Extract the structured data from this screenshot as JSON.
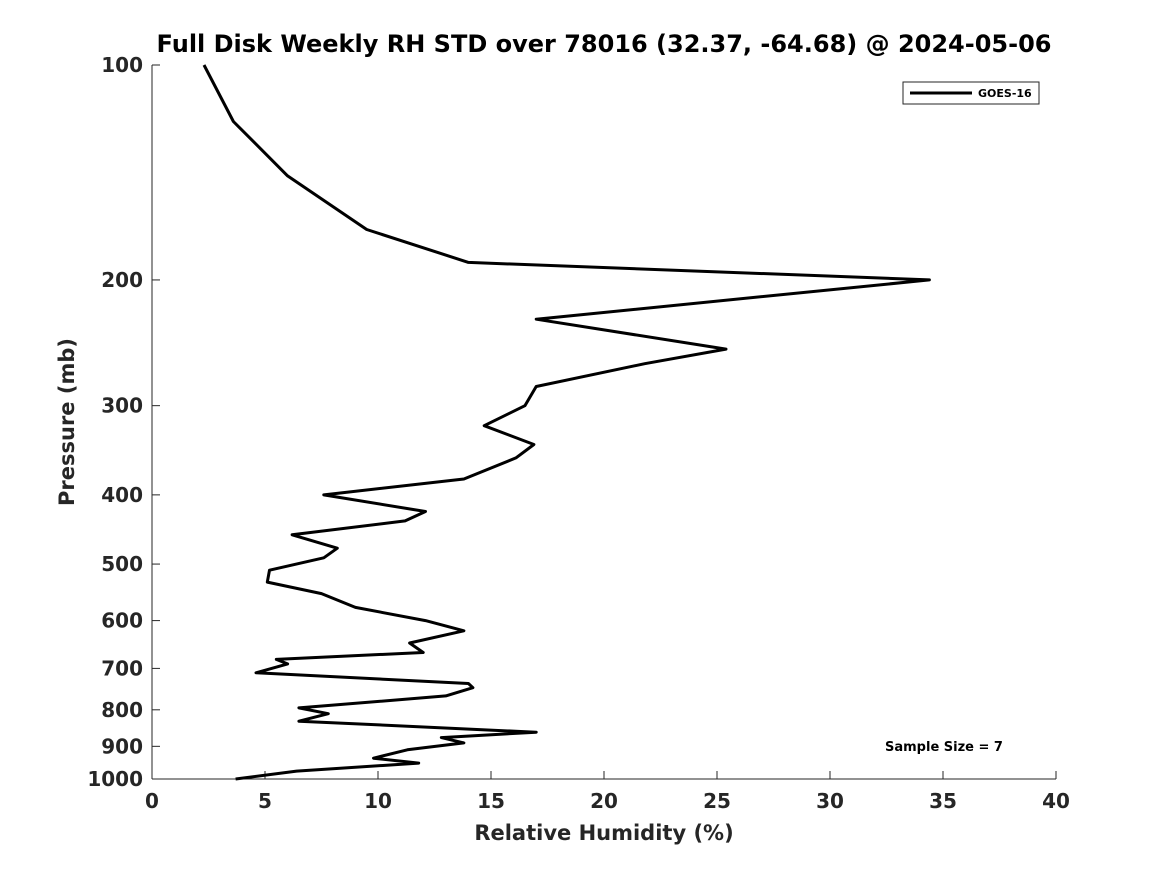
{
  "chart_data": {
    "type": "line",
    "title": "Full Disk Weekly RH STD over 78016 (32.37, -64.68) @ 2024-05-06",
    "xlabel": "Relative Humidity (%)",
    "ylabel": "Pressure (mb)",
    "xlim": [
      0,
      40
    ],
    "ylim": [
      1000,
      100
    ],
    "yscale": "log",
    "y_reversed": true,
    "grid": false,
    "legend_position": "top-right",
    "xticks": [
      0,
      5,
      10,
      15,
      20,
      25,
      30,
      35,
      40
    ],
    "xtick_labels": [
      "0",
      "5",
      "10",
      "15",
      "20",
      "25",
      "30",
      "35",
      "40"
    ],
    "yticks": [
      100,
      200,
      300,
      400,
      500,
      600,
      700,
      800,
      900,
      1000
    ],
    "ytick_labels": [
      "100",
      "200",
      "300",
      "400",
      "500",
      "600",
      "700",
      "800",
      "900",
      "1000"
    ],
    "series": [
      {
        "name": "GOES-16",
        "color": "#000000",
        "x": [
          2.3,
          3.6,
          6.0,
          9.5,
          14.0,
          34.4,
          17.0,
          25.4,
          21.8,
          17.0,
          16.5,
          14.7,
          16.9,
          16.1,
          13.8,
          7.6,
          12.1,
          11.2,
          6.2,
          8.2,
          7.6,
          5.2,
          5.1,
          7.5,
          9.0,
          12.1,
          13.8,
          11.4,
          12.0,
          5.5,
          6.0,
          4.6,
          14.0,
          14.2,
          13.0,
          6.5,
          7.8,
          6.5,
          17.0,
          12.8,
          13.8,
          11.3,
          9.8,
          11.8,
          6.4,
          3.7
        ],
        "y": [
          100,
          120,
          143,
          170,
          189,
          200,
          227,
          250,
          262,
          282,
          300,
          320,
          340,
          355,
          380,
          400,
          422,
          435,
          455,
          475,
          490,
          510,
          530,
          550,
          575,
          600,
          620,
          645,
          665,
          680,
          690,
          710,
          735,
          745,
          765,
          795,
          810,
          830,
          860,
          875,
          890,
          910,
          935,
          950,
          975,
          1000
        ]
      }
    ],
    "annotations": [
      {
        "text": "Sample Size = 7"
      }
    ]
  }
}
